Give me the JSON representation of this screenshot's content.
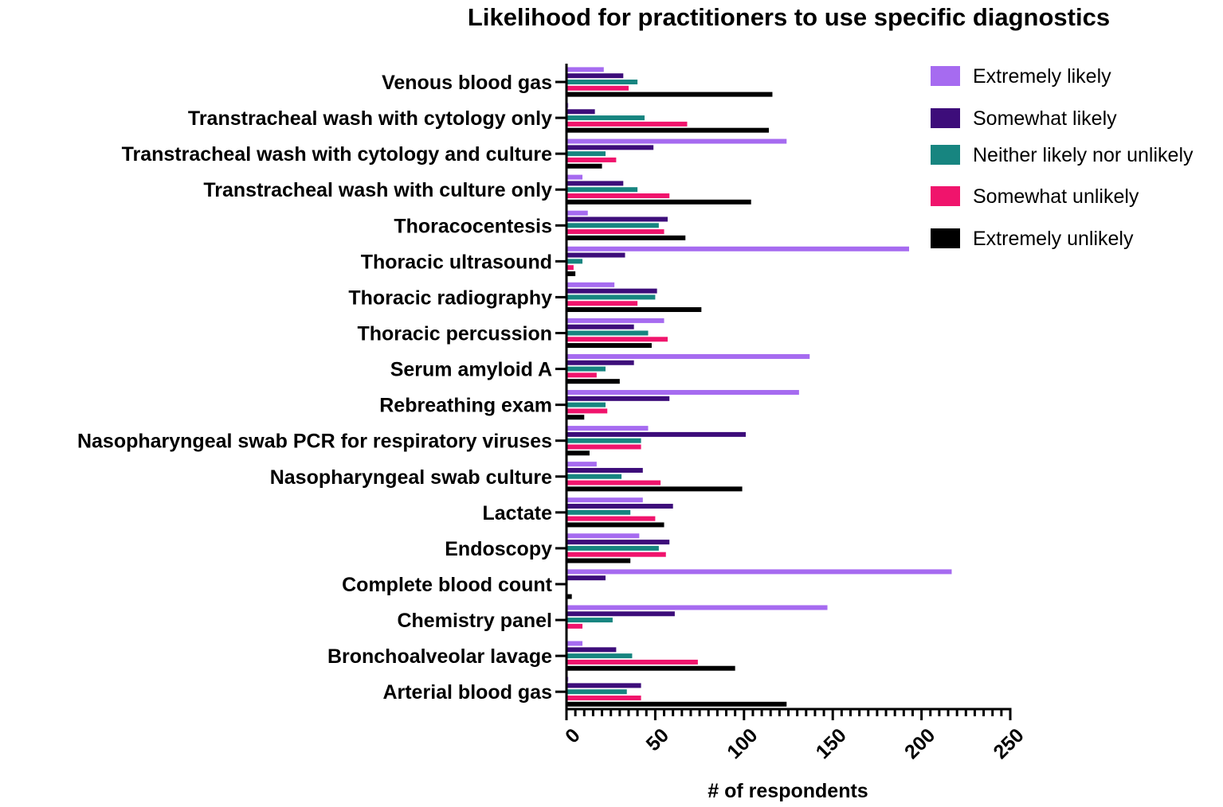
{
  "chart_data": {
    "type": "bar",
    "orientation": "horizontal",
    "title": "Likelihood for practitioners to use specific diagnostics",
    "xlabel": "# of respondents",
    "ylabel": "",
    "xlim": [
      0,
      250
    ],
    "x_ticks": [
      0,
      50,
      100,
      150,
      200,
      250
    ],
    "grid": false,
    "legend_position": "top-right",
    "categories": [
      "Venous blood gas",
      "Transtracheal wash with cytology only",
      "Transtracheal wash with cytology and culture",
      "Transtracheal wash with culture only",
      "Thoracocentesis",
      "Thoracic ultrasound",
      "Thoracic radiography",
      "Thoracic percussion",
      "Serum amyloid A",
      "Rebreathing exam",
      "Nasopharyngeal swab PCR for respiratory viruses",
      "Nasopharyngeal swab culture",
      "Lactate",
      "Endoscopy",
      "Complete blood count",
      "Chemistry panel",
      "Bronchoalveolar lavage",
      "Arterial blood gas"
    ],
    "series": [
      {
        "name": "Extremely likely",
        "color": "#a66bf0",
        "values": [
          21,
          1,
          124,
          9,
          12,
          193,
          27,
          55,
          137,
          131,
          46,
          17,
          43,
          41,
          217,
          147,
          9,
          1
        ]
      },
      {
        "name": "Somewhat likely",
        "color": "#3d0d7a",
        "values": [
          32,
          16,
          49,
          32,
          57,
          33,
          51,
          38,
          38,
          58,
          101,
          43,
          60,
          58,
          22,
          61,
          28,
          42
        ]
      },
      {
        "name": "Neither likely nor unlikely",
        "color": "#178580",
        "values": [
          40,
          44,
          22,
          40,
          52,
          9,
          50,
          46,
          22,
          22,
          42,
          31,
          36,
          52,
          0,
          26,
          37,
          34
        ]
      },
      {
        "name": "Somewhat unlikely",
        "color": "#f0146c",
        "values": [
          35,
          68,
          28,
          58,
          55,
          4,
          40,
          57,
          17,
          23,
          42,
          53,
          50,
          56,
          0,
          9,
          74,
          42
        ]
      },
      {
        "name": "Extremely unlikely",
        "color": "#000000",
        "values": [
          116,
          114,
          20,
          104,
          67,
          5,
          76,
          48,
          30,
          10,
          13,
          99,
          55,
          36,
          3,
          0,
          95,
          124
        ]
      }
    ]
  }
}
